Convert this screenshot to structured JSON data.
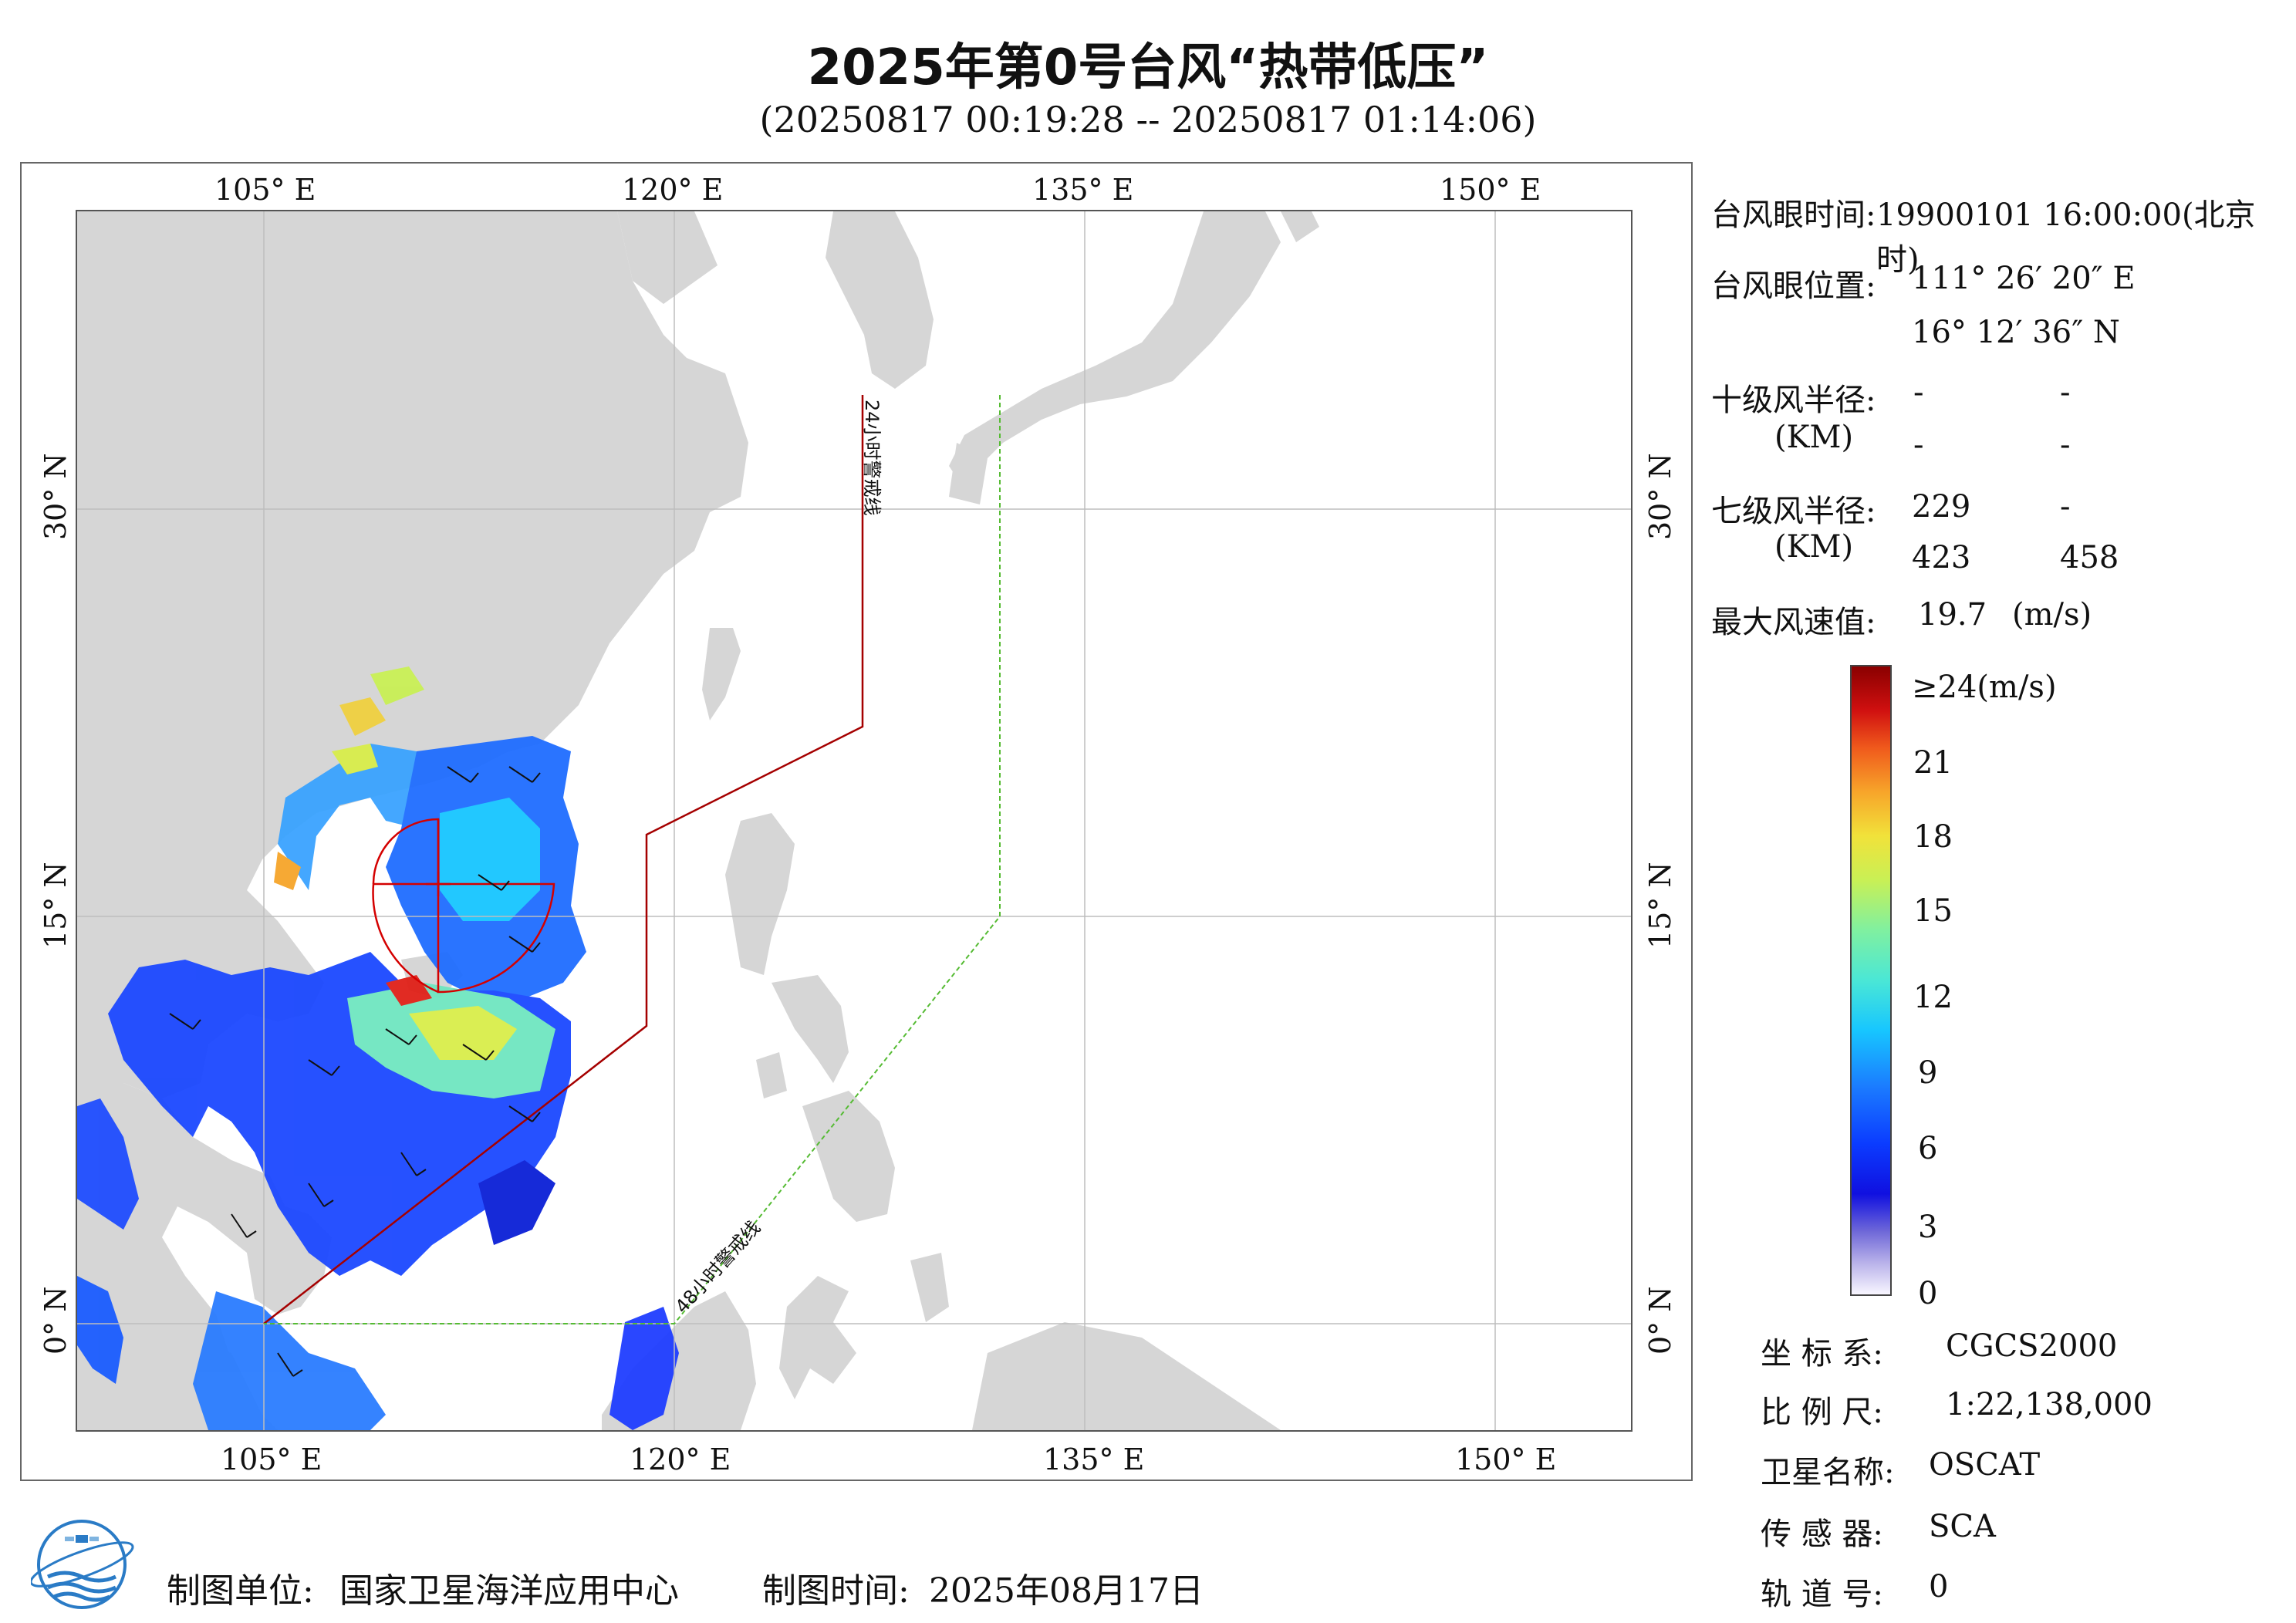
{
  "header": {
    "title": "2025年第0号台风“热带低压”",
    "subtitle": "(20250817 00:19:28 -- 20250817 01:14:06)"
  },
  "map": {
    "lon_ticks_top": [
      "105° E",
      "120° E",
      "135° E",
      "150° E"
    ],
    "lon_ticks_bottom": [
      "105° E",
      "120° E",
      "135° E",
      "150° E"
    ],
    "lat_ticks_left": [
      "30° N",
      "15° N",
      "0° N"
    ],
    "lat_ticks_right": [
      "30° N",
      "15° N",
      "0° N"
    ],
    "warning_24h_label": "24小时警戒线",
    "warning_48h_label": "48小时警戒线",
    "colors": {
      "land": "#d6d6d6",
      "ocean": "#ffffff",
      "grid": "#bdbdbd",
      "line_24h": "#a50000",
      "line_48h": "#55bb33",
      "typhoon_radius": "#d40000"
    }
  },
  "info": {
    "eye_time_label": "台风眼时间:",
    "eye_time_value": "19900101 16:00:00(北京时)",
    "eye_pos_label": "台风眼位置:",
    "eye_lon": "111° 26′ 20″ E",
    "eye_lat": "16° 12′ 36″ N",
    "r10_label": "十级风半径:",
    "km_label": "(KM)",
    "r10_values": [
      "-",
      "-",
      "-",
      "-"
    ],
    "r7_label": "七级风半径:",
    "km_label2": "(KM)",
    "r7_values": [
      "229",
      "-",
      "423",
      "458"
    ],
    "max_wind_label": "最大风速值:",
    "max_wind_value": "19.7",
    "max_wind_unit": "(m/s)"
  },
  "colorbar": {
    "labels": [
      "≥24(m/s)",
      "21",
      "18",
      "15",
      "12",
      "9",
      "6",
      "3",
      "0"
    ]
  },
  "meta": {
    "crs_label": "坐 标 系:",
    "crs_value": "CGCS2000",
    "scale_label": "比 例 尺:",
    "scale_value": "1:22,138,000",
    "satellite_label": "卫星名称:",
    "satellite_value": "OSCAT",
    "sensor_label": "传 感 器:",
    "sensor_value": "SCA",
    "orbit_label": "轨 道 号:",
    "orbit_value": "0"
  },
  "footer": {
    "producer_label": "制图单位:",
    "producer_value": "国家卫星海洋应用中心",
    "date_label": "制图时间:",
    "date_value": "2025年08月17日"
  }
}
